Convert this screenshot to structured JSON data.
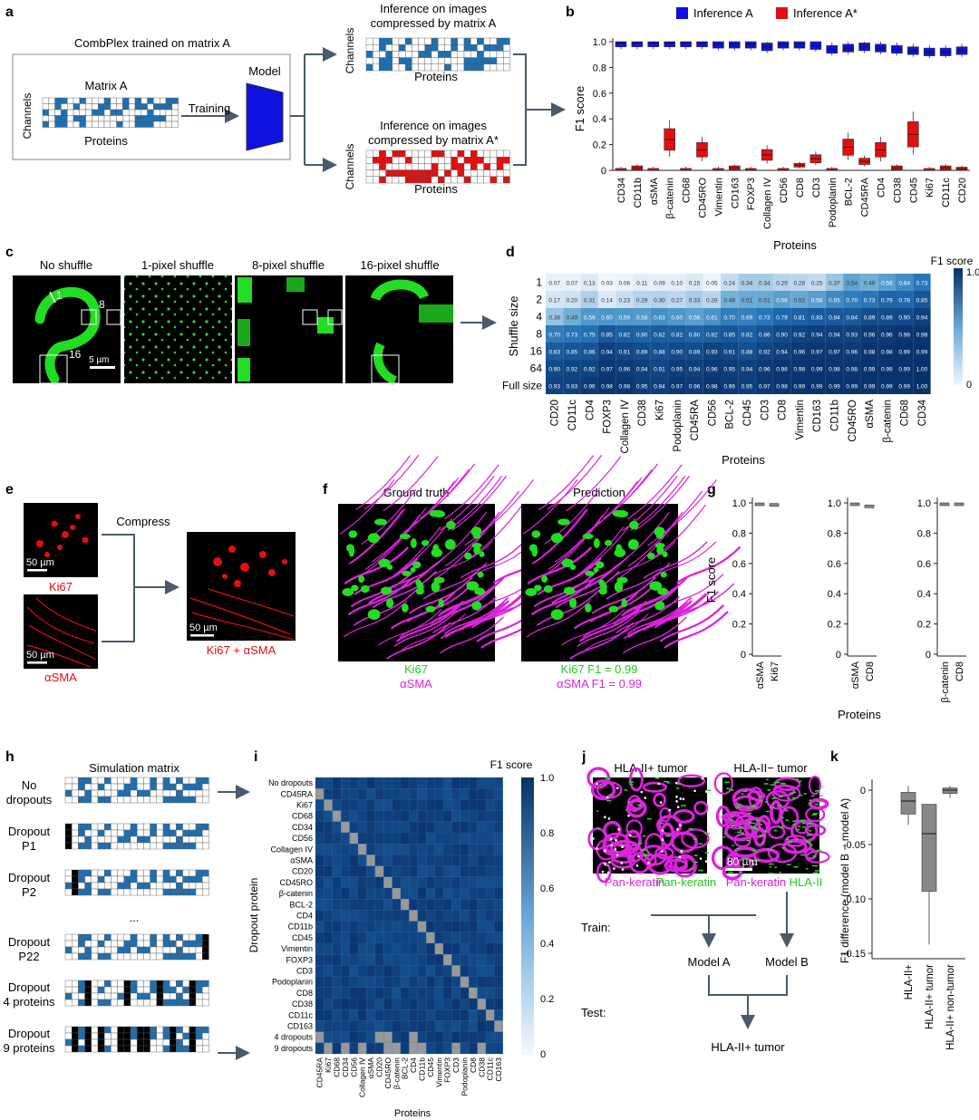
{
  "panel_letters": [
    "a",
    "b",
    "c",
    "d",
    "e",
    "f",
    "g",
    "h",
    "i",
    "j",
    "k"
  ],
  "colors": {
    "blue": "#1f5fa8",
    "blue_bright": "#1010e0",
    "red": "#e11010",
    "green": "#22dd22",
    "magenta": "#dd22dd",
    "grey": "#777777"
  },
  "panel_a": {
    "train_title": "CombPlex trained on matrix A",
    "matrix_label": "Matrix A",
    "channels_label": "Channels",
    "proteins_label": "Proteins",
    "training_label": "Training",
    "model_label": "Model",
    "inference_a_title_1": "Inference on images",
    "inference_a_title_2": "compressed by matrix A",
    "inference_astar_title_1": "Inference on images",
    "inference_astar_title_2": "compressed by matrix A*"
  },
  "panel_b": {
    "legend": [
      "Inference A",
      "Inference A*"
    ],
    "ylabel": "F1 score",
    "xlabel": "Proteins"
  },
  "panel_c": {
    "titles": [
      "No shuffle",
      "1-pixel shuffle",
      "8-pixel shuffle",
      "16-pixel shuffle"
    ],
    "annot_1": "1",
    "annot_8": "8",
    "annot_16": "16",
    "scalebar": "5 µm"
  },
  "panel_d": {
    "ylabel": "Shuffle size",
    "xlabel": "Proteins",
    "cbar_title": "F1 score",
    "cbar_ticks": [
      "1.0",
      "0"
    ]
  },
  "panel_e": {
    "compress_label": "Compress",
    "ki67_label": "Ki67",
    "asma_label": "αSMA",
    "combined_label": "Ki67 + αSMA",
    "scalebar": "50 µm"
  },
  "panel_f": {
    "titles": [
      "Ground truth",
      "Prediction"
    ],
    "gt_labels": [
      "Ki67",
      "αSMA"
    ],
    "pred_labels": [
      "Ki67 F1 = 0.99",
      "αSMA F1 = 0.99"
    ]
  },
  "panel_g": {
    "ylabel": "F1 score",
    "xlabel": "Proteins",
    "yticks": [
      "1.0",
      "0.8",
      "0.6",
      "0.4",
      "0.2",
      "0"
    ],
    "groups": [
      [
        "αSMA",
        "Ki67"
      ],
      [
        "αSMA",
        "CD8"
      ],
      [
        "β-catenin",
        "CD8"
      ]
    ]
  },
  "panel_h": {
    "title": "Simulation matrix",
    "rows": [
      "No dropouts",
      "Dropout P1",
      "Dropout P2",
      "...",
      "Dropout P22",
      "Dropout 4 proteins",
      "Dropout 9 proteins"
    ]
  },
  "panel_i": {
    "ylabel": "Dropout protein",
    "xlabel": "Proteins",
    "cbar_title": "F1 score",
    "cbar_ticks": [
      "1.0",
      "0.8",
      "0.6",
      "0.4",
      "0.2",
      "0"
    ]
  },
  "panel_j": {
    "titles": [
      "HLA-II+ tumor",
      "HLA-II− tumor"
    ],
    "legend_a": "Pan-keratin",
    "legend_b": "HLA-II",
    "scalebar": "80 µm",
    "train_label": "Train:",
    "test_label": "Test:",
    "model_a": "Model A",
    "model_b": "Model B",
    "test_target": "HLA-II+ tumor"
  },
  "panel_k": {
    "ylabel": "F1 difference (model B − model A)",
    "yticks": [
      "0",
      "-0.05",
      "-0.10",
      "-0.15"
    ],
    "categories": [
      "HLA-II+",
      "HLA-II+ tumor",
      "HLA-II+ non-tumor"
    ]
  },
  "chart_data": [
    {
      "type": "box",
      "panel": "b",
      "ylabel": "F1 score",
      "xlabel": "Proteins",
      "ylim": [
        0,
        1.0
      ],
      "categories": [
        "CD34",
        "CD11b",
        "αSMA",
        "β-catenin",
        "CD68",
        "CD45RO",
        "Vimentin",
        "CD163",
        "FOXP3",
        "Collagen IV",
        "CD56",
        "CD8",
        "CD3",
        "Podoplanin",
        "BCL-2",
        "CD45RA",
        "CD4",
        "CD38",
        "CD45",
        "Ki67",
        "CD11c",
        "CD20"
      ],
      "series": [
        {
          "name": "Inference A",
          "median": [
            0.99,
            0.99,
            0.99,
            0.99,
            0.99,
            0.99,
            0.98,
            0.98,
            0.98,
            0.96,
            0.98,
            0.98,
            0.97,
            0.94,
            0.95,
            0.96,
            0.95,
            0.94,
            0.93,
            0.92,
            0.92,
            0.93
          ]
        },
        {
          "name": "Inference A*",
          "median": [
            0.0,
            0.02,
            0.0,
            0.24,
            0.0,
            0.16,
            0.0,
            0.02,
            0.0,
            0.12,
            0.0,
            0.04,
            0.09,
            0.0,
            0.18,
            0.07,
            0.16,
            0.02,
            0.28,
            0.0,
            0.02,
            0.01
          ]
        }
      ]
    },
    {
      "type": "heatmap",
      "panel": "d",
      "ylabel": "Shuffle size",
      "xlabel": "Proteins",
      "rows": [
        "1",
        "2",
        "4",
        "8",
        "16",
        "64",
        "Full size"
      ],
      "columns": [
        "CD20",
        "CD11c",
        "CD4",
        "FOXP3",
        "Collagen IV",
        "CD38",
        "Ki67",
        "Podoplanin",
        "CD45RA",
        "CD56",
        "BCL-2",
        "CD45",
        "CD3",
        "CD8",
        "Vimentin",
        "CD163",
        "CD11b",
        "CD45RO",
        "αSMA",
        "β-catenin",
        "CD68",
        "CD34"
      ],
      "values": [
        [
          0.07,
          0.07,
          0.13,
          0.03,
          0.06,
          0.11,
          0.09,
          0.1,
          0.15,
          0.05,
          0.24,
          0.34,
          0.34,
          0.29,
          0.28,
          0.25,
          0.37,
          0.54,
          0.49,
          0.56,
          0.64,
          0.73
        ],
        [
          0.17,
          0.2,
          0.31,
          0.14,
          0.23,
          0.29,
          0.3,
          0.27,
          0.33,
          0.28,
          0.48,
          0.51,
          0.51,
          0.56,
          0.52,
          0.56,
          0.65,
          0.7,
          0.73,
          0.79,
          0.78,
          0.85
        ],
        [
          0.38,
          0.49,
          0.59,
          0.6,
          0.59,
          0.58,
          0.63,
          0.6,
          0.56,
          0.61,
          0.7,
          0.69,
          0.73,
          0.79,
          0.81,
          0.83,
          0.84,
          0.84,
          0.89,
          0.89,
          0.9,
          0.94
        ],
        [
          0.7,
          0.73,
          0.75,
          0.85,
          0.82,
          0.8,
          0.82,
          0.82,
          0.8,
          0.82,
          0.85,
          0.82,
          0.86,
          0.9,
          0.92,
          0.94,
          0.94,
          0.93,
          0.96,
          0.96,
          0.98,
          0.98
        ],
        [
          0.83,
          0.85,
          0.86,
          0.94,
          0.91,
          0.89,
          0.88,
          0.9,
          0.89,
          0.93,
          0.91,
          0.88,
          0.92,
          0.94,
          0.96,
          0.97,
          0.97,
          0.96,
          0.98,
          0.98,
          0.99,
          0.99
        ],
        [
          0.9,
          0.92,
          0.92,
          0.97,
          0.96,
          0.94,
          0.91,
          0.95,
          0.94,
          0.96,
          0.95,
          0.94,
          0.96,
          0.98,
          0.98,
          0.99,
          0.98,
          0.98,
          0.99,
          0.99,
          0.99,
          1.0
        ],
        [
          0.93,
          0.93,
          0.96,
          0.98,
          0.98,
          0.95,
          0.94,
          0.97,
          0.96,
          0.98,
          0.96,
          0.95,
          0.97,
          0.98,
          0.99,
          0.99,
          0.99,
          0.99,
          0.99,
          0.99,
          0.99,
          1.0
        ]
      ],
      "cbar_range": [
        0,
        1.0
      ]
    },
    {
      "type": "box",
      "panel": "g",
      "ylabel": "F1 score",
      "xlabel": "Proteins",
      "ylim": [
        0,
        1.0
      ],
      "groups": [
        {
          "categories": [
            "αSMA",
            "Ki67"
          ],
          "median": [
            1.0,
            0.99
          ]
        },
        {
          "categories": [
            "αSMA",
            "CD8"
          ],
          "median": [
            1.0,
            0.98
          ]
        },
        {
          "categories": [
            "β-catenin",
            "CD8"
          ],
          "median": [
            1.0,
            1.0
          ]
        }
      ]
    },
    {
      "type": "heatmap",
      "panel": "i",
      "ylabel": "Dropout protein",
      "xlabel": "Proteins",
      "rows": [
        "No dropouts",
        "CD45RA",
        "Ki67",
        "CD68",
        "CD34",
        "CD56",
        "Collagen IV",
        "αSMA",
        "CD20",
        "CD45RO",
        "β-catenin",
        "BCL-2",
        "CD4",
        "CD11b",
        "CD45",
        "Vimentin",
        "FOXP3",
        "CD3",
        "Podoplanin",
        "CD8",
        "CD38",
        "CD11c",
        "CD163",
        "4 dropouts",
        "9 dropouts"
      ],
      "columns": [
        "CD45RA",
        "Ki67",
        "CD68",
        "CD34",
        "CD56",
        "Collagen IV",
        "αSMA",
        "CD20",
        "CD45RO",
        "β-catenin",
        "BCL-2",
        "CD4",
        "CD11b",
        "CD45",
        "Vimentin",
        "FOXP3",
        "CD3",
        "Podoplanin",
        "CD8",
        "CD38",
        "CD11c",
        "CD163"
      ],
      "cbar_range": [
        0,
        1.0
      ]
    },
    {
      "type": "box",
      "panel": "k",
      "ylabel": "F1 difference (model B − model A)",
      "ylim": [
        -0.15,
        0.0
      ],
      "categories": [
        "HLA-II+",
        "HLA-II+ tumor",
        "HLA-II+ non-tumor"
      ],
      "median": [
        -0.01,
        -0.04,
        0.0
      ]
    }
  ]
}
